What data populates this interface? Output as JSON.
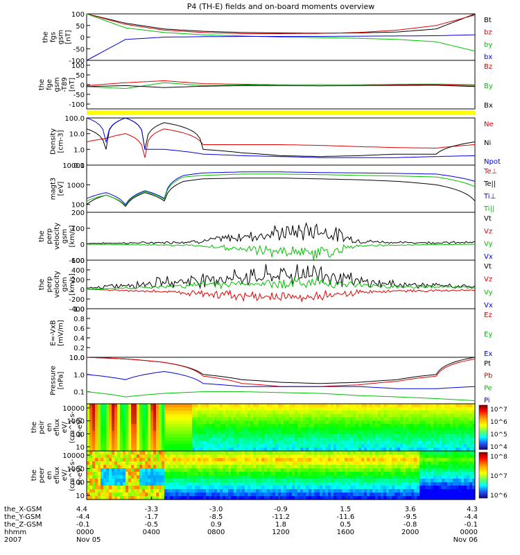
{
  "title": "P4 (TH-E) fields and on-board moments overview",
  "colors": {
    "black": "#000000",
    "red": "#e00000",
    "green": "#00c000",
    "blue": "#0000e0",
    "yellow": "#ffff00"
  },
  "chart_data": [
    {
      "type": "line",
      "name": "fgs-gsm",
      "ylabel": [
        "the",
        "fgs",
        "gsm",
        "[nT]"
      ],
      "ylim": [
        -100,
        100
      ],
      "yticks": [
        -100,
        -50,
        0,
        50,
        100
      ],
      "tick_labels": [
        "-100",
        "-50",
        "0",
        "50",
        "100"
      ],
      "legend": [
        {
          "label": "Bt",
          "color": "black"
        },
        {
          "label": "bz",
          "color": "red"
        },
        {
          "label": "by",
          "color": "green"
        },
        {
          "label": "bx",
          "color": "blue"
        }
      ],
      "series": [
        {
          "name": "Bt",
          "color": "black",
          "x": [
            0,
            0.1,
            0.2,
            0.3,
            0.4,
            0.5,
            0.6,
            0.7,
            0.8,
            0.9,
            1
          ],
          "y": [
            100,
            60,
            35,
            25,
            20,
            18,
            17,
            18,
            22,
            35,
            100
          ]
        },
        {
          "name": "bz",
          "color": "red",
          "x": [
            0,
            0.1,
            0.2,
            0.3,
            0.4,
            0.5,
            0.6,
            0.7,
            0.8,
            0.9,
            1
          ],
          "y": [
            100,
            55,
            30,
            20,
            15,
            15,
            16,
            20,
            30,
            50,
            95
          ]
        },
        {
          "name": "by",
          "color": "green",
          "x": [
            0,
            0.1,
            0.2,
            0.3,
            0.4,
            0.5,
            0.6,
            0.7,
            0.8,
            0.9,
            1
          ],
          "y": [
            100,
            40,
            20,
            10,
            5,
            0,
            -2,
            -5,
            -10,
            -20,
            -60
          ]
        },
        {
          "name": "bx",
          "color": "blue",
          "x": [
            0,
            0.1,
            0.2,
            0.3,
            0.4,
            0.5,
            0.6,
            0.7,
            0.8,
            0.9,
            1
          ],
          "y": [
            -100,
            -10,
            0,
            2,
            3,
            3,
            3,
            4,
            5,
            6,
            10
          ]
        }
      ]
    },
    {
      "type": "line",
      "name": "fge-gsm-t89",
      "ylabel": [
        "the",
        "fge",
        "gsm",
        "-T89",
        "[nT]"
      ],
      "ylim": [
        -125,
        125
      ],
      "yticks": [
        -100,
        -50,
        0,
        50,
        100
      ],
      "tick_labels": [
        "-100",
        "-50",
        "0",
        "50",
        "100"
      ],
      "legend": [
        {
          "label": "Bz",
          "color": "red"
        },
        {
          "label": "By",
          "color": "green"
        },
        {
          "label": "Bx",
          "color": "black"
        }
      ],
      "series": [
        {
          "name": "Bz",
          "color": "red",
          "x": [
            0,
            0.1,
            0.2,
            0.3,
            0.4,
            0.5,
            0.6,
            0.7,
            0.8,
            0.9,
            1
          ],
          "y": [
            -5,
            10,
            20,
            5,
            2,
            0,
            0,
            0,
            0,
            0,
            -5
          ]
        },
        {
          "name": "By",
          "color": "green",
          "x": [
            0,
            0.1,
            0.2,
            0.3,
            0.4,
            0.5,
            0.6,
            0.7,
            0.8,
            0.9,
            1
          ],
          "y": [
            -10,
            -20,
            10,
            -5,
            -2,
            0,
            0,
            0,
            2,
            3,
            0
          ]
        },
        {
          "name": "Bx",
          "color": "black",
          "x": [
            0,
            0.1,
            0.2,
            0.3,
            0.4,
            0.5,
            0.6,
            0.7,
            0.8,
            0.9,
            1
          ],
          "y": [
            -10,
            -5,
            -15,
            -8,
            -5,
            -5,
            -6,
            -5,
            -4,
            -3,
            -10
          ]
        }
      ]
    },
    {
      "type": "line",
      "name": "density",
      "log": true,
      "ylabel": [
        "Density",
        "[cm-3]"
      ],
      "ylim": [
        0.1,
        100
      ],
      "yticks": [
        0.1,
        1,
        10,
        100
      ],
      "tick_labels": [
        "0.1",
        "1.0",
        "10.0",
        "100.0"
      ],
      "legend": [
        {
          "label": "Ne",
          "color": "red"
        },
        {
          "label": "Ni",
          "color": "black"
        },
        {
          "label": "Npot",
          "color": "blue"
        }
      ],
      "series": [
        {
          "name": "Ne",
          "color": "red",
          "x": [
            0,
            0.05,
            0.1,
            0.15,
            0.2,
            0.3,
            0.4,
            0.5,
            0.6,
            0.7,
            0.8,
            0.9,
            1
          ],
          "y": [
            3,
            5,
            10,
            0.3,
            20,
            2,
            2,
            2,
            1.8,
            1.5,
            1.3,
            1.2,
            2
          ]
        },
        {
          "name": "Ni",
          "color": "black",
          "x": [
            0,
            0.05,
            0.1,
            0.15,
            0.2,
            0.3,
            0.4,
            0.5,
            0.6,
            0.7,
            0.8,
            0.9,
            1
          ],
          "y": [
            20,
            1,
            100,
            1,
            50,
            1,
            0.6,
            0.4,
            0.35,
            0.4,
            0.5,
            0.5,
            3
          ]
        },
        {
          "name": "Npot",
          "color": "blue",
          "x": [
            0,
            0.05,
            0.1,
            0.15,
            0.2,
            0.3,
            0.4,
            0.5,
            0.6,
            0.7,
            0.8,
            0.9,
            1
          ],
          "y": [
            100,
            3,
            100,
            1,
            1,
            0.5,
            0.4,
            0.35,
            0.3,
            0.3,
            0.3,
            0.35,
            0.4
          ]
        }
      ]
    },
    {
      "type": "line",
      "name": "temperature",
      "log": true,
      "ylabel": [
        "magt3",
        "[eV]"
      ],
      "ylim": [
        40,
        10000
      ],
      "yticks": [
        100,
        1000,
        10000
      ],
      "tick_labels": [
        "100",
        "1000",
        "10000"
      ],
      "legend": [
        {
          "label": "Te⊥",
          "color": "red"
        },
        {
          "label": "Te||",
          "color": "black"
        },
        {
          "label": "Ti⊥",
          "color": "blue"
        },
        {
          "label": "Ti||",
          "color": "green"
        }
      ],
      "series": [
        {
          "name": "Te",
          "color": "black",
          "x": [
            0,
            0.05,
            0.1,
            0.15,
            0.2,
            0.25,
            0.3,
            0.4,
            0.5,
            0.6,
            0.7,
            0.8,
            0.9,
            1
          ],
          "y": [
            100,
            300,
            80,
            400,
            150,
            1500,
            2000,
            2200,
            2200,
            2000,
            1800,
            1500,
            1000,
            150
          ]
        },
        {
          "name": "Ti",
          "color": "blue",
          "x": [
            0,
            0.05,
            0.1,
            0.15,
            0.2,
            0.25,
            0.3,
            0.4,
            0.5,
            0.6,
            0.7,
            0.8,
            0.9,
            1
          ],
          "y": [
            200,
            400,
            100,
            500,
            200,
            3000,
            4000,
            4500,
            4500,
            4200,
            4000,
            3800,
            3500,
            1500
          ]
        },
        {
          "name": "Tpar",
          "color": "green",
          "x": [
            0,
            0.05,
            0.1,
            0.15,
            0.2,
            0.25,
            0.3,
            0.4,
            0.5,
            0.6,
            0.7,
            0.8,
            0.9,
            1
          ],
          "y": [
            150,
            300,
            90,
            450,
            180,
            2500,
            3000,
            3500,
            3500,
            3300,
            3000,
            2800,
            2500,
            800
          ]
        }
      ]
    },
    {
      "type": "line",
      "name": "perp-velocity",
      "noisy": true,
      "ylabel": [
        "the",
        "perp",
        "velocity",
        "gsm",
        "[km/s]"
      ],
      "ylim": [
        -100,
        200
      ],
      "yticks": [
        -100,
        0,
        100,
        200
      ],
      "tick_labels": [
        "-100",
        "0",
        "100",
        "200"
      ],
      "legend": [
        {
          "label": "Vt",
          "color": "black"
        },
        {
          "label": "Vz",
          "color": "red"
        },
        {
          "label": "Vy",
          "color": "green"
        },
        {
          "label": "Vx",
          "color": "blue"
        }
      ],
      "series": [
        {
          "name": "Vt",
          "color": "black",
          "x": [
            0,
            0.2,
            0.3,
            0.45,
            0.6,
            0.7,
            0.8,
            1
          ],
          "y": [
            5,
            10,
            20,
            60,
            90,
            20,
            10,
            10
          ]
        },
        {
          "name": "Vy",
          "color": "green",
          "x": [
            0,
            0.2,
            0.3,
            0.45,
            0.6,
            0.7,
            0.8,
            1
          ],
          "y": [
            0,
            -5,
            -10,
            -40,
            -60,
            -10,
            -5,
            0
          ]
        }
      ]
    },
    {
      "type": "line",
      "name": "para-velocity",
      "noisy": true,
      "ylabel": [
        "the",
        "perp",
        "velocity",
        "gsm",
        "[km/s]"
      ],
      "ylim": [
        -400,
        600
      ],
      "yticks": [
        -400,
        -200,
        0,
        200,
        400,
        600
      ],
      "tick_labels": [
        "-400",
        "-200",
        "0",
        "200",
        "400",
        "600"
      ],
      "legend": [
        {
          "label": "Vt",
          "color": "black"
        },
        {
          "label": "Vz",
          "color": "red"
        },
        {
          "label": "Vy",
          "color": "green"
        },
        {
          "label": "Vx",
          "color": "blue"
        }
      ],
      "series": [
        {
          "name": "Vt",
          "color": "black",
          "x": [
            0,
            0.2,
            0.3,
            0.5,
            0.6,
            0.7,
            0.8,
            1
          ],
          "y": [
            20,
            150,
            200,
            300,
            350,
            150,
            100,
            50
          ]
        },
        {
          "name": "Vz",
          "color": "red",
          "x": [
            0,
            0.2,
            0.3,
            0.5,
            0.6,
            0.7,
            0.8,
            1
          ],
          "y": [
            0,
            -50,
            -100,
            -150,
            -150,
            -60,
            -40,
            -20
          ]
        },
        {
          "name": "Vy",
          "color": "green",
          "x": [
            0,
            0.2,
            0.3,
            0.5,
            0.6,
            0.7,
            0.8,
            1
          ],
          "y": [
            0,
            50,
            100,
            120,
            150,
            80,
            60,
            40
          ]
        }
      ]
    },
    {
      "type": "line",
      "name": "efield",
      "ylabel": [
        "E=-VxB",
        "[mV/m]"
      ],
      "ylim": [
        0,
        1
      ],
      "yticks": [
        0,
        0.2,
        0.4,
        0.6,
        0.8,
        1
      ],
      "tick_labels": [
        "0.0",
        "0.2",
        "0.4",
        "0.6",
        "0.8",
        "1.0"
      ],
      "legend": [
        {
          "label": "Ez",
          "color": "red"
        },
        {
          "label": "Ey",
          "color": "green"
        },
        {
          "label": "Ex",
          "color": "blue"
        }
      ],
      "series": []
    },
    {
      "type": "line",
      "name": "pressure",
      "log": true,
      "ylabel": [
        "Pressure",
        "[nPa]"
      ],
      "ylim": [
        0.02,
        10
      ],
      "yticks": [
        0.1,
        1,
        10
      ],
      "tick_labels": [
        "0.1",
        "1.0",
        "10.0"
      ],
      "legend": [
        {
          "label": "Pt",
          "color": "black"
        },
        {
          "label": "Pb",
          "color": "red"
        },
        {
          "label": "Pe",
          "color": "green"
        },
        {
          "label": "Pi",
          "color": "blue"
        }
      ],
      "series": [
        {
          "name": "Pt",
          "color": "black",
          "x": [
            0,
            0.1,
            0.2,
            0.3,
            0.4,
            0.5,
            0.6,
            0.7,
            0.8,
            0.9,
            1
          ],
          "y": [
            10,
            8,
            5,
            1,
            0.5,
            0.35,
            0.3,
            0.35,
            0.5,
            1,
            10
          ]
        },
        {
          "name": "Pb",
          "color": "red",
          "x": [
            0,
            0.1,
            0.2,
            0.3,
            0.4,
            0.5,
            0.6,
            0.7,
            0.8,
            0.9,
            1
          ],
          "y": [
            10,
            8,
            5,
            0.8,
            0.3,
            0.2,
            0.2,
            0.25,
            0.4,
            0.8,
            8
          ]
        },
        {
          "name": "Pe",
          "color": "green",
          "x": [
            0,
            0.1,
            0.2,
            0.3,
            0.4,
            0.5,
            0.6,
            0.7,
            0.8,
            0.9,
            1
          ],
          "y": [
            0.1,
            0.05,
            0.08,
            0.1,
            0.1,
            0.09,
            0.08,
            0.06,
            0.05,
            0.04,
            0.03
          ]
        },
        {
          "name": "Pi",
          "color": "blue",
          "x": [
            0,
            0.1,
            0.2,
            0.3,
            0.4,
            0.5,
            0.6,
            0.7,
            0.8,
            0.9,
            1
          ],
          "y": [
            1,
            0.5,
            1.5,
            0.3,
            0.2,
            0.2,
            0.2,
            0.2,
            0.15,
            0.15,
            0.2
          ]
        }
      ]
    },
    {
      "type": "heatmap",
      "name": "ion-eflux",
      "pattern": "ion",
      "ylabel": [
        "the",
        "peir",
        "en",
        "eflux",
        "eV/",
        "(cm^2-s-",
        "sr-eV)"
      ],
      "yticks": [
        10,
        100,
        1000,
        10000
      ],
      "tick_labels": [
        "10",
        "100",
        "1000",
        "10000"
      ],
      "colorbar": [
        "10^7",
        "10^6",
        "10^5",
        "10^4"
      ]
    },
    {
      "type": "heatmap",
      "name": "electron-eflux",
      "pattern": "electron",
      "ylabel": [
        "the",
        "peer",
        "en",
        "eflux",
        "eV/",
        "(cm^2-s-",
        "sr-eV)"
      ],
      "yticks": [
        10,
        100,
        1000,
        10000
      ],
      "tick_labels": [
        "10",
        "100",
        "1000",
        "10000"
      ],
      "colorbar": [
        "10^8",
        "10^7",
        "10^6"
      ]
    }
  ],
  "xaxis": {
    "row_labels": [
      "the_X-GSM",
      "the_Y-GSM",
      "the_Z-GSM",
      "hhmm",
      "2007"
    ],
    "columns": [
      {
        "values": [
          "4.4",
          "-4.4",
          "-0.1",
          "0000",
          "Nov 05"
        ]
      },
      {
        "values": [
          "-3.3",
          "-1.7",
          "-0.5",
          "0400",
          ""
        ]
      },
      {
        "values": [
          "-3.0",
          "-8.5",
          "0.9",
          "0800",
          ""
        ]
      },
      {
        "values": [
          "-0.9",
          "-11.2",
          "1.8",
          "1200",
          ""
        ]
      },
      {
        "values": [
          "1.5",
          "-11.6",
          "0.5",
          "1600",
          ""
        ]
      },
      {
        "values": [
          "3.6",
          "-9.5",
          "-0.8",
          "2000",
          ""
        ]
      },
      {
        "values": [
          "4.3",
          "-4.4",
          "-0.1",
          "0000",
          "Nov 06"
        ]
      }
    ]
  }
}
